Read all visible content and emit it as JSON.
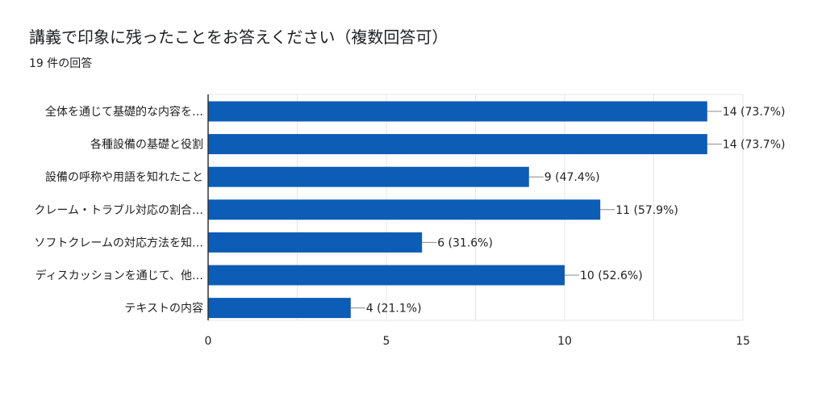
{
  "header": {
    "title": "講義で印象に残ったことをお答えください（複数回答可）",
    "response_count": "19 件の回答"
  },
  "colors": {
    "bar": "#0d5cb6",
    "grid": "#e6e6e6",
    "axis": "#333333",
    "text": "#212121"
  },
  "chart_data": {
    "type": "bar",
    "orientation": "horizontal",
    "categories": [
      "全体を通じて基礎的な内容を…",
      "各種設備の基礎と役割",
      "設備の呼称や用語を知れたこと",
      "クレーム・トラブル対応の割合…",
      "ソフトクレームの対応方法を知…",
      "ディスカッションを通じて、他…",
      "テキストの内容"
    ],
    "values": [
      14,
      14,
      9,
      11,
      6,
      10,
      4
    ],
    "data_labels": [
      "14 (73.7%)",
      "14 (73.7%)",
      "9 (47.4%)",
      "11 (57.9%)",
      "6 (31.6%)",
      "10 (52.6%)",
      "4 (21.1%)"
    ],
    "xlim": [
      0,
      15
    ],
    "xticks": [
      0,
      5,
      10,
      15
    ],
    "grid": true,
    "title": "講義で印象に残ったことをお答えください（複数回答可）",
    "xlabel": "",
    "ylabel": ""
  }
}
